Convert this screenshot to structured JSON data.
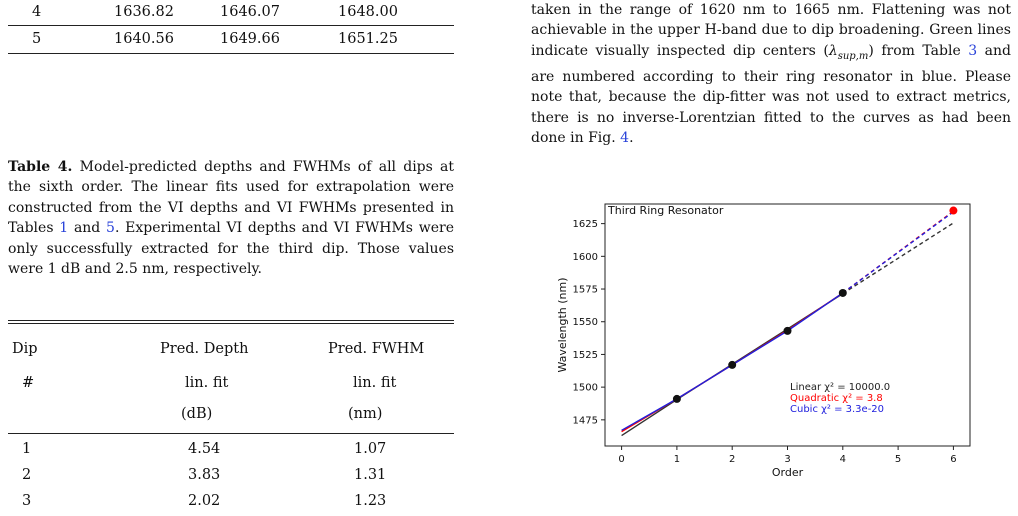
{
  "top_table": {
    "rows": [
      [
        "4",
        "1636.82",
        "1646.07",
        "1648.00"
      ],
      [
        "5",
        "1640.56",
        "1649.66",
        "1651.25"
      ]
    ]
  },
  "caption": {
    "label": "Table 4.",
    "text": " Model-predicted depths and FWHMs of all dips at the sixth order. The linear fits used for extrapolation were constructed from the VI depths and VI FWHMs presented in Tables ",
    "ref1": "1",
    "and": " and ",
    "ref2": "5",
    "text2": ". Experimental VI depths and VI FWHMs were only successfully extracted for the third dip. Those values were 1 dB and 2.5 nm, respectively."
  },
  "table4": {
    "headers": {
      "dip": "Dip",
      "hash": "#",
      "pred_depth": "Pred. Depth",
      "pred_fwhm": "Pred. FWHM",
      "lin_fit_1": "lin. fit",
      "lin_fit_2": "lin. fit",
      "unit_db": "(dB)",
      "unit_nm": "(nm)"
    },
    "rows": [
      [
        "1",
        "4.54",
        "1.07"
      ],
      [
        "2",
        "3.83",
        "1.31"
      ],
      [
        "3",
        "2.02",
        "1.23"
      ]
    ]
  },
  "right_text": {
    "p1": "taken in the range of 1620 nm to 1665 nm. Flattening was not achievable in the upper H-band due to dip broadening. Green lines indicate visually inspected dip centers (",
    "lambda": "λ",
    "sub": "sup,m",
    "p1b": ") from Table ",
    "ref3": "3",
    "p1c": " and are numbered according to their ring resonator in blue. Please note that, because the dip-fitter was not used to extract metrics, there is no inverse-Lorentzian fitted to the curves as had been done in Fig. ",
    "ref4": "4",
    "p1d": "."
  },
  "chart_data": {
    "type": "line",
    "title": "Third Ring Resonator",
    "xlabel": "Order",
    "ylabel": "Wavelength (nm)",
    "xlim": [
      -0.3,
      6.3
    ],
    "ylim": [
      1455,
      1640
    ],
    "xticks": [
      0,
      1,
      2,
      3,
      4,
      5,
      6
    ],
    "yticks": [
      1475,
      1500,
      1525,
      1550,
      1575,
      1600,
      1625
    ],
    "points": {
      "x": [
        1,
        2,
        3,
        4
      ],
      "y": [
        1491,
        1517,
        1543,
        1572
      ]
    },
    "predicted_point": {
      "x": 6,
      "y": 1635,
      "color": "#ff0000"
    },
    "series": [
      {
        "name": "Linear",
        "color": "#333333",
        "x": [
          0,
          1,
          2,
          3,
          4
        ],
        "y": [
          1463,
          1490.5,
          1517.5,
          1544.5,
          1571.5
        ],
        "extrap_x": [
          4,
          6
        ],
        "extrap_y": [
          1571.5,
          1625.5
        ]
      },
      {
        "name": "Quadratic",
        "color": "#ff0000",
        "x": [
          0,
          1,
          2,
          3,
          4
        ],
        "y": [
          1466,
          1491,
          1517,
          1543.5,
          1572
        ],
        "extrap_x": [
          4,
          6
        ],
        "extrap_y": [
          1572,
          1634.5
        ]
      },
      {
        "name": "Cubic",
        "color": "#2020dd",
        "x": [
          0,
          1,
          2,
          3,
          4
        ],
        "y": [
          1467,
          1491,
          1517,
          1543,
          1572
        ],
        "extrap_x": [
          4,
          6
        ],
        "extrap_y": [
          1572,
          1634
        ]
      }
    ],
    "legend": [
      {
        "text": "Linear χ² =  10000.0",
        "color": "#222222"
      },
      {
        "text": "Quadratic χ² =  3.8",
        "color": "#ff0000"
      },
      {
        "text": "Cubic χ² =  3.3e-20",
        "color": "#2020dd"
      }
    ],
    "grid": false
  }
}
